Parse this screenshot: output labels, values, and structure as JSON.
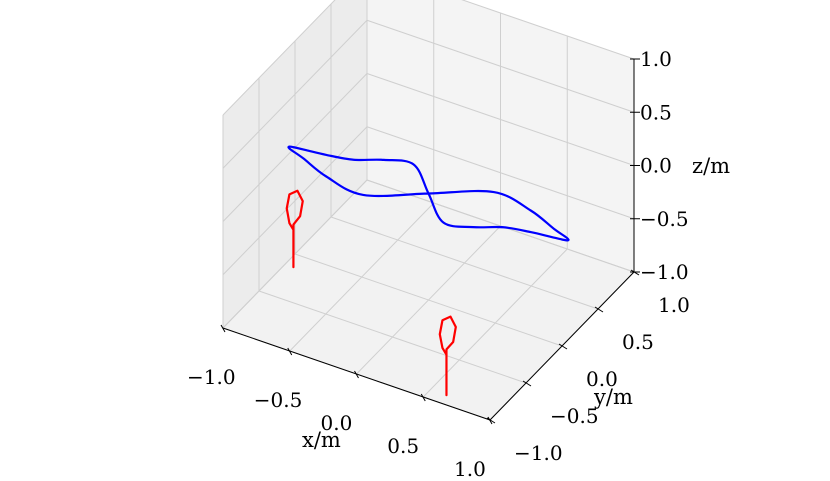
{
  "chart_data": {
    "type": "line3d",
    "title": "",
    "xlabel": "x/m",
    "ylabel": "y/m",
    "zlabel": "z/m",
    "xlim": [
      -1.0,
      1.0
    ],
    "ylim": [
      -1.0,
      1.0
    ],
    "zlim": [
      -1.0,
      1.0
    ],
    "x_ticks": [
      "−1.0",
      "−0.5",
      "0.0",
      "0.5",
      "1.0"
    ],
    "y_ticks": [
      "−1.0",
      "−0.5",
      "0.0",
      "0.5",
      "1.0"
    ],
    "z_ticks": [
      "−1.0",
      "−0.5",
      "0.0",
      "0.5",
      "1.0"
    ],
    "grid": true,
    "series": [
      {
        "color": "#0000ff",
        "description": "figure-eight curve",
        "points": [
          [
            -1.0,
            0.0,
            0.0
          ],
          [
            -0.98,
            -0.12,
            0.1
          ],
          [
            -0.9,
            -0.25,
            0.2
          ],
          [
            -0.75,
            -0.35,
            0.25
          ],
          [
            -0.55,
            -0.4,
            0.2
          ],
          [
            -0.3,
            -0.35,
            0.1
          ],
          [
            0.0,
            0.0,
            0.0
          ],
          [
            0.3,
            0.35,
            -0.1
          ],
          [
            0.55,
            0.4,
            -0.2
          ],
          [
            0.75,
            0.35,
            -0.25
          ],
          [
            0.9,
            0.25,
            -0.2
          ],
          [
            0.98,
            0.12,
            -0.1
          ],
          [
            1.0,
            0.0,
            0.0
          ],
          [
            0.98,
            -0.12,
            0.1
          ],
          [
            0.9,
            -0.25,
            0.2
          ],
          [
            0.75,
            -0.35,
            0.25
          ],
          [
            0.55,
            -0.4,
            0.2
          ],
          [
            0.3,
            -0.35,
            0.1
          ],
          [
            0.0,
            0.0,
            0.0
          ],
          [
            -0.3,
            0.35,
            -0.1
          ],
          [
            -0.55,
            0.4,
            -0.2
          ],
          [
            -0.75,
            0.35,
            -0.25
          ],
          [
            -0.9,
            0.25,
            -0.2
          ],
          [
            -0.98,
            0.12,
            -0.1
          ],
          [
            -1.0,
            0.0,
            0.0
          ]
        ]
      },
      {
        "color": "#ff0000",
        "description": "left loop with stem",
        "points": [
          [
            -0.85,
            -0.3,
            -0.85
          ],
          [
            -0.85,
            -0.3,
            -0.5
          ],
          [
            -0.85,
            -0.3,
            -0.45
          ],
          [
            -0.8,
            -0.3,
            -0.35
          ],
          [
            -0.78,
            -0.3,
            -0.2
          ],
          [
            -0.82,
            -0.3,
            -0.12
          ],
          [
            -0.88,
            -0.3,
            -0.18
          ],
          [
            -0.9,
            -0.3,
            -0.32
          ],
          [
            -0.88,
            -0.3,
            -0.45
          ],
          [
            -0.85,
            -0.3,
            -0.5
          ]
        ]
      },
      {
        "color": "#ff0000",
        "description": "right loop with stem",
        "points": [
          [
            0.62,
            -0.9,
            -1.0
          ],
          [
            0.62,
            -0.9,
            -0.62
          ],
          [
            0.62,
            -0.9,
            -0.57
          ],
          [
            0.67,
            -0.9,
            -0.48
          ],
          [
            0.69,
            -0.9,
            -0.33
          ],
          [
            0.65,
            -0.9,
            -0.25
          ],
          [
            0.59,
            -0.9,
            -0.31
          ],
          [
            0.57,
            -0.9,
            -0.45
          ],
          [
            0.59,
            -0.9,
            -0.57
          ],
          [
            0.62,
            -0.9,
            -0.62
          ]
        ]
      }
    ]
  }
}
